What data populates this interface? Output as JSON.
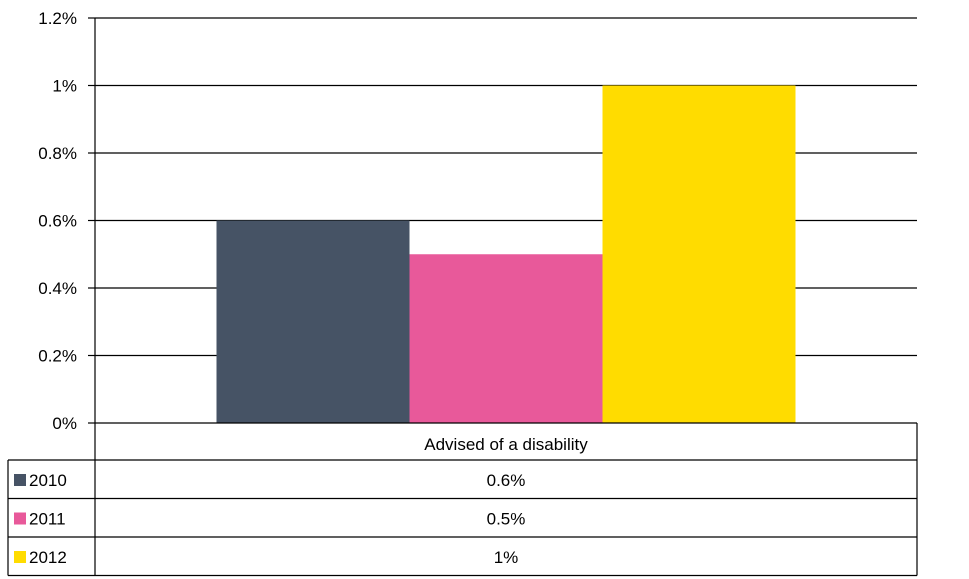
{
  "chart_data": {
    "type": "bar",
    "title": "",
    "xlabel": "",
    "ylabel": "",
    "categories": [
      "Advised of a disability"
    ],
    "series": [
      {
        "name": "2010",
        "values": [
          0.6
        ],
        "color": "#465365",
        "label": "0.6%"
      },
      {
        "name": "2011",
        "values": [
          0.5
        ],
        "color": "#e8599a",
        "label": "0.5%"
      },
      {
        "name": "2012",
        "values": [
          1.0
        ],
        "color": "#ffdc00",
        "label": "1%"
      }
    ],
    "ylim": [
      0,
      1.2
    ],
    "yticks": [
      {
        "value": 0,
        "label": "0%"
      },
      {
        "value": 0.2,
        "label": "0.2%"
      },
      {
        "value": 0.4,
        "label": "0.4%"
      },
      {
        "value": 0.6,
        "label": "0.6%"
      },
      {
        "value": 0.8,
        "label": "0.8%"
      },
      {
        "value": 1.0,
        "label": "1%"
      },
      {
        "value": 1.2,
        "label": "1.2%"
      }
    ],
    "grid": true,
    "legend": "data-table"
  }
}
